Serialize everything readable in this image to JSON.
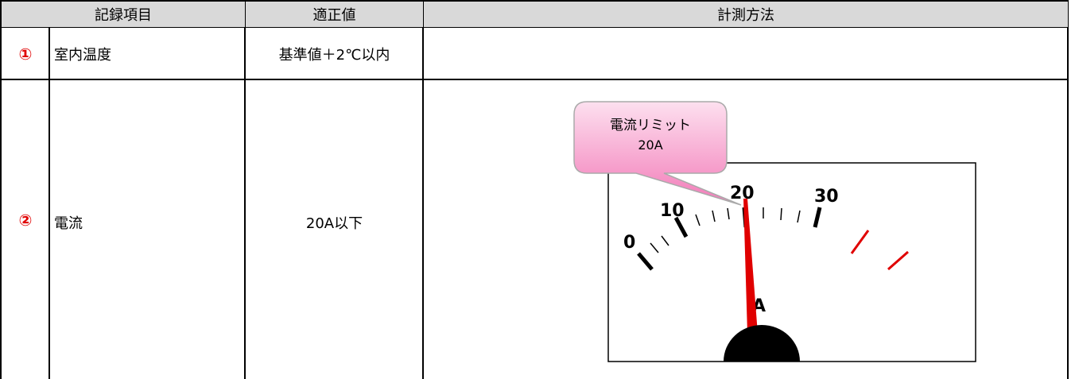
{
  "table": {
    "header": [
      "記録項目",
      "適正値",
      "計測方法"
    ],
    "rows": [
      [
        "①",
        "室内温度",
        "基準値＋2℃以内",
        ""
      ],
      [
        "②",
        "電流",
        "20A以下",
        ""
      ]
    ]
  },
  "gauge": {
    "callout": [
      "電流リミット",
      "20A"
    ],
    "scale_labels": [
      "0",
      "10",
      "20",
      "30"
    ],
    "unit": "A"
  }
}
